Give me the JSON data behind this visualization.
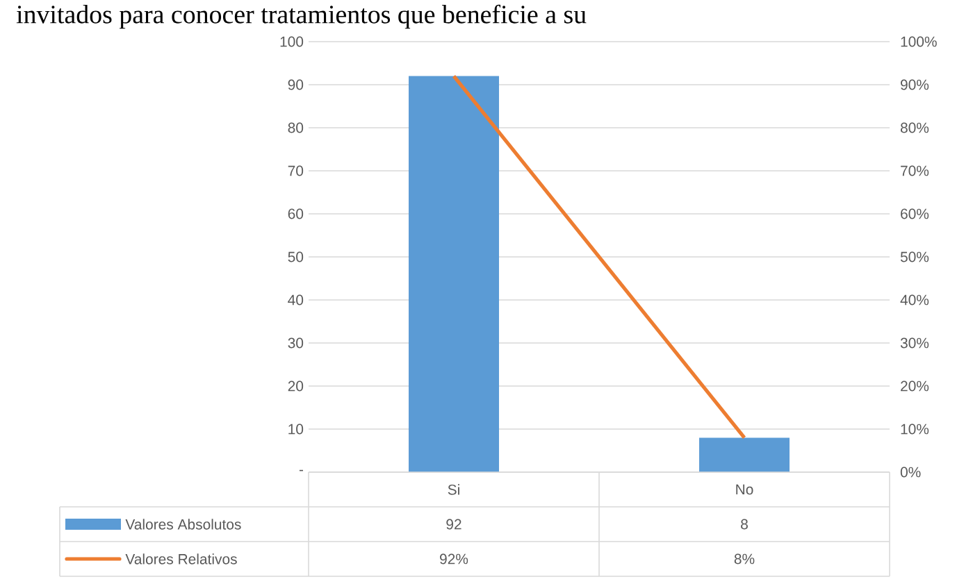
{
  "chart_data": {
    "type": "bar",
    "title": "invitados para conocer tratamientos que beneficie a su",
    "categories": [
      "Si",
      "No"
    ],
    "series": [
      {
        "name": "Valores Absolutos",
        "color": "#5b9bd5",
        "values": [
          92,
          8
        ],
        "value_labels": [
          "92",
          "8"
        ]
      },
      {
        "name": "Valores Relativos",
        "type": "line",
        "axis": "y2",
        "color": "#ed7d31",
        "values": [
          92,
          8
        ],
        "value_labels": [
          "92%",
          "8%"
        ]
      }
    ],
    "ylim": [
      0,
      100
    ],
    "yticks": [
      {
        "value": 0,
        "label": "-"
      },
      10,
      20,
      30,
      40,
      50,
      60,
      70,
      80,
      90,
      100
    ],
    "y2lim": [
      0,
      100
    ],
    "y2ticks": [
      {
        "value": 0,
        "label": "0%"
      },
      {
        "value": 10,
        "label": "10%"
      },
      {
        "value": 20,
        "label": "20%"
      },
      {
        "value": 30,
        "label": "30%"
      },
      {
        "value": 40,
        "label": "40%"
      },
      {
        "value": 50,
        "label": "50%"
      },
      {
        "value": 60,
        "label": "60%"
      },
      {
        "value": 70,
        "label": "70%"
      },
      {
        "value": 80,
        "label": "80%"
      },
      {
        "value": 90,
        "label": "90%"
      },
      {
        "value": 100,
        "label": "100%"
      }
    ],
    "grid": "y",
    "legend": "bottom"
  }
}
